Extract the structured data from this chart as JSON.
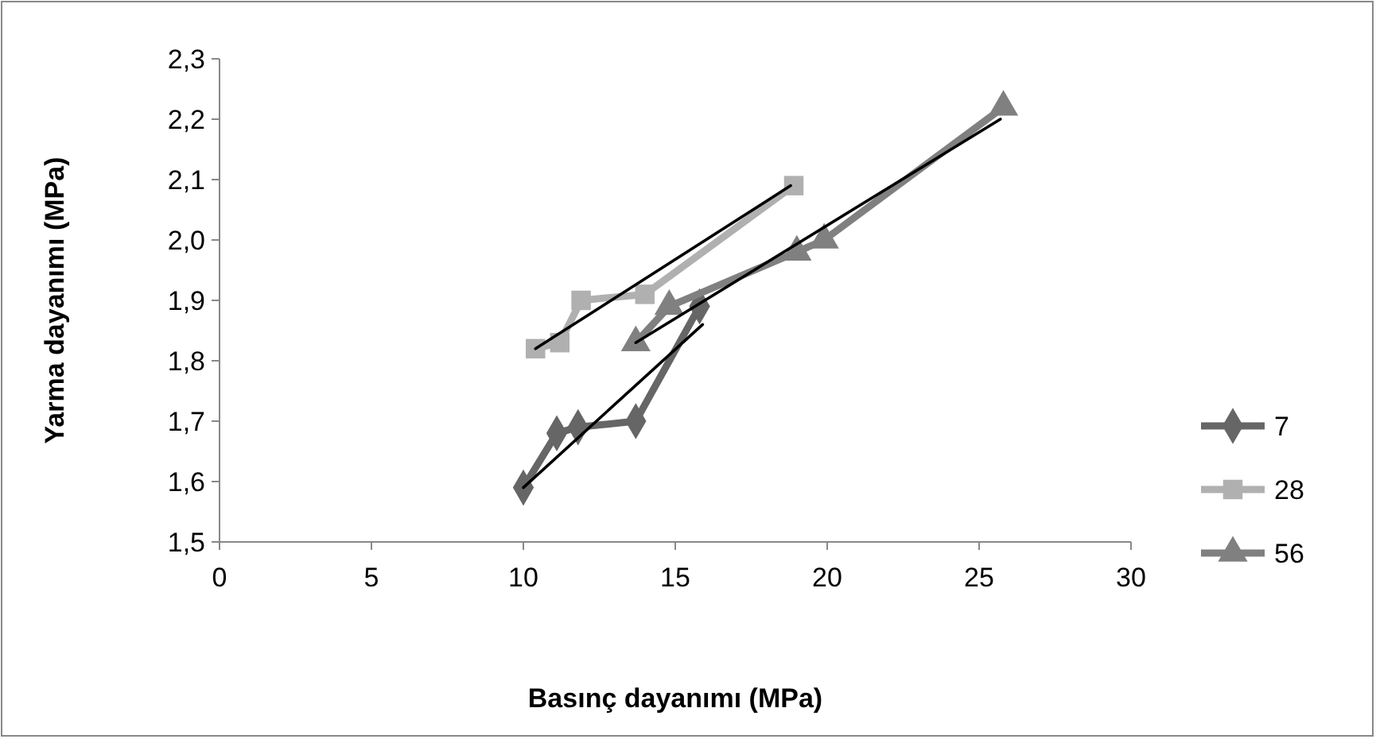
{
  "chart_data": {
    "type": "line",
    "xlabel": "Basınç dayanımı (MPa)",
    "ylabel": "Yarma dayanımı (MPa)",
    "xlim": [
      0,
      30
    ],
    "xticks": [
      0,
      5,
      10,
      15,
      20,
      25,
      30
    ],
    "ylim": [
      1.5,
      2.3
    ],
    "yticks": [
      {
        "value": 1.5,
        "label": "1,5"
      },
      {
        "value": 1.6,
        "label": "1,6"
      },
      {
        "value": 1.7,
        "label": "1,7"
      },
      {
        "value": 1.8,
        "label": "1,8"
      },
      {
        "value": 1.9,
        "label": "1,9"
      },
      {
        "value": 2.0,
        "label": "2,0"
      },
      {
        "value": 2.1,
        "label": "2,1"
      },
      {
        "value": 2.2,
        "label": "2,2"
      },
      {
        "value": 2.3,
        "label": "2,3"
      }
    ],
    "grid": false,
    "legend": "right",
    "series": [
      {
        "name": "7",
        "color": "#666666",
        "marker": "diamond",
        "x": [
          10.0,
          11.1,
          11.8,
          13.7,
          15.8
        ],
        "values": [
          1.59,
          1.68,
          1.69,
          1.7,
          1.89
        ]
      },
      {
        "name": "28",
        "color": "#b0b0b0",
        "marker": "square",
        "x": [
          10.4,
          11.2,
          11.9,
          14.0,
          18.9
        ],
        "values": [
          1.82,
          1.83,
          1.9,
          1.91,
          2.09
        ]
      },
      {
        "name": "56",
        "color": "#808080",
        "marker": "triangle",
        "x": [
          13.7,
          14.8,
          19.0,
          19.9,
          25.8
        ],
        "values": [
          1.83,
          1.89,
          1.98,
          2.0,
          2.22
        ]
      },
      {
        "color": "#000000",
        "marker": "none",
        "x": [
          10.0,
          15.9
        ],
        "values": [
          1.59,
          1.86
        ]
      },
      {
        "color": "#000000",
        "marker": "none",
        "x": [
          10.4,
          18.8
        ],
        "values": [
          1.82,
          2.09
        ]
      },
      {
        "color": "#000000",
        "marker": "none",
        "x": [
          13.7,
          25.7
        ],
        "values": [
          1.83,
          2.2
        ]
      }
    ]
  }
}
